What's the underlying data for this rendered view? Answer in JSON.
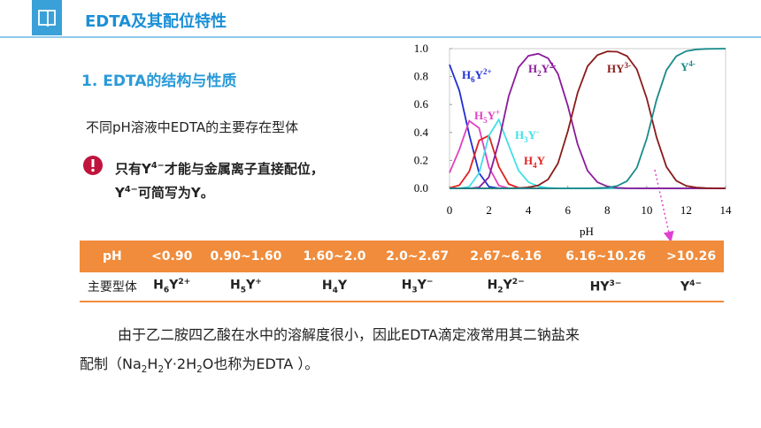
{
  "header": {
    "title": "EDTA及其配位特性"
  },
  "section": {
    "heading": "1. EDTA的结构与性质",
    "intro": "不同pH溶液中EDTA的主要存在型体",
    "note": [
      [
        {
          "text": "只有Y"
        },
        {
          "text": "4−",
          "style": "sup"
        },
        {
          "text": "才能与金属离子直接配位，"
        }
      ],
      [
        {
          "text": "Y"
        },
        {
          "text": "4−",
          "style": "sup"
        },
        {
          "text": "可简写为Y。"
        }
      ]
    ]
  },
  "chart_data": {
    "type": "line",
    "xlabel": "pH",
    "x": [
      0,
      0.5,
      1,
      1.5,
      2,
      2.5,
      3,
      3.5,
      4,
      4.5,
      5,
      5.5,
      6,
      6.5,
      7,
      7.5,
      8,
      8.5,
      9,
      9.5,
      10,
      10.5,
      11,
      11.5,
      12,
      12.5,
      13,
      13.5,
      14
    ],
    "xlim": [
      0,
      14
    ],
    "xticks": [
      0,
      2,
      4,
      6,
      8,
      10,
      12,
      14
    ],
    "ylim": [
      0,
      1
    ],
    "yticks": [
      {
        "value": 0,
        "label": "0.0"
      },
      {
        "value": 0.2,
        "label": "0.2"
      },
      {
        "value": 0.4,
        "label": "0.4"
      },
      {
        "value": 0.6,
        "label": "0.6"
      },
      {
        "value": 0.8,
        "label": "0.8"
      },
      {
        "value": 1,
        "label": "1.0"
      }
    ],
    "series": [
      {
        "name": [
          {
            "text": "H"
          },
          {
            "text": "6",
            "style": "sub"
          },
          {
            "text": "Y"
          },
          {
            "text": "2+",
            "style": "sup"
          }
        ],
        "color": "#1f2fd0",
        "values": [
          0.886,
          0.699,
          0.384,
          0.109,
          0.012,
          0.001,
          0,
          0,
          0,
          0,
          0,
          0,
          0,
          0,
          0,
          0,
          0,
          0,
          0,
          0,
          0,
          0,
          0,
          0,
          0,
          0,
          0,
          0,
          0
        ]
      },
      {
        "name": [
          {
            "text": "H"
          },
          {
            "text": "5",
            "style": "sub"
          },
          {
            "text": "Y"
          },
          {
            "text": "+",
            "style": "sup"
          }
        ],
        "color": "#e040c0",
        "values": [
          0.112,
          0.278,
          0.483,
          0.432,
          0.151,
          0.02,
          0.001,
          0,
          0,
          0,
          0,
          0,
          0,
          0,
          0,
          0,
          0,
          0,
          0,
          0,
          0,
          0,
          0,
          0,
          0,
          0,
          0,
          0,
          0
        ]
      },
      {
        "name": [
          {
            "text": "H"
          },
          {
            "text": "4",
            "style": "sub"
          },
          {
            "text": "Y"
          }
        ],
        "color": "#e02020",
        "values": [
          0.003,
          0.022,
          0.121,
          0.343,
          0.378,
          0.155,
          0.031,
          0.004,
          0,
          0,
          0,
          0,
          0,
          0,
          0,
          0,
          0,
          0,
          0,
          0,
          0,
          0,
          0,
          0,
          0,
          0,
          0,
          0,
          0
        ]
      },
      {
        "name": [
          {
            "text": "H"
          },
          {
            "text": "3",
            "style": "sub"
          },
          {
            "text": "Y"
          },
          {
            "text": "-",
            "style": "sup"
          }
        ],
        "color": "#40e0e8",
        "values": [
          0,
          0.001,
          0.012,
          0.109,
          0.378,
          0.492,
          0.308,
          0.128,
          0.045,
          0.014,
          0.004,
          0.001,
          0,
          0,
          0,
          0,
          0,
          0,
          0,
          0,
          0,
          0,
          0,
          0,
          0,
          0,
          0,
          0,
          0
        ]
      },
      {
        "name": [
          {
            "text": "H"
          },
          {
            "text": "2",
            "style": "sub"
          },
          {
            "text": "Y"
          },
          {
            "text": "2-",
            "style": "sup"
          }
        ],
        "color": "#8a1a9a",
        "values": [
          0,
          0,
          0,
          0.007,
          0.081,
          0.333,
          0.659,
          0.866,
          0.949,
          0.964,
          0.931,
          0.819,
          0.591,
          0.314,
          0.126,
          0.044,
          0.014,
          0.004,
          0.001,
          0,
          0,
          0,
          0,
          0,
          0,
          0,
          0,
          0,
          0
        ]
      },
      {
        "name": [
          {
            "text": "HY"
          },
          {
            "text": "3-",
            "style": "sup"
          }
        ],
        "color": "#8b1a1a",
        "values": [
          0,
          0,
          0,
          0,
          0,
          0,
          0.001,
          0.002,
          0.007,
          0.021,
          0.064,
          0.179,
          0.409,
          0.686,
          0.874,
          0.954,
          0.98,
          0.978,
          0.947,
          0.852,
          0.645,
          0.365,
          0.154,
          0.054,
          0.018,
          0.006,
          0.002,
          0.001,
          0
        ]
      },
      {
        "name": [
          {
            "text": "Y"
          },
          {
            "text": "4-",
            "style": "sup"
          }
        ],
        "color": "#1a8a8a",
        "values": [
          0,
          0,
          0,
          0,
          0,
          0,
          0,
          0,
          0,
          0,
          0,
          0,
          0,
          0,
          0,
          0.002,
          0.005,
          0.017,
          0.052,
          0.148,
          0.355,
          0.635,
          0.846,
          0.946,
          0.982,
          0.994,
          0.998,
          0.999,
          1
        ]
      }
    ]
  },
  "table": {
    "header": [
      "pH",
      "<0.90",
      "0.90~1.60",
      "1.60~2.0",
      "2.0~2.67",
      "2.67~6.16",
      "6.16~10.26",
      ">10.26"
    ],
    "rows": [
      [
        "主要型体",
        [
          {
            "text": "H"
          },
          {
            "text": "6",
            "style": "sub"
          },
          {
            "text": "Y"
          },
          {
            "text": "2+",
            "style": "sup"
          }
        ],
        [
          {
            "text": "H"
          },
          {
            "text": "5",
            "style": "sub"
          },
          {
            "text": "Y"
          },
          {
            "text": "+",
            "style": "sup"
          }
        ],
        [
          {
            "text": "H"
          },
          {
            "text": "4",
            "style": "sub"
          },
          {
            "text": "Y"
          }
        ],
        [
          {
            "text": "H"
          },
          {
            "text": "3",
            "style": "sub"
          },
          {
            "text": "Y"
          },
          {
            "text": "−",
            "style": "sup"
          }
        ],
        [
          {
            "text": "H"
          },
          {
            "text": "2",
            "style": "sub"
          },
          {
            "text": "Y"
          },
          {
            "text": "2−",
            "style": "sup"
          }
        ],
        [
          {
            "text": "HY"
          },
          {
            "text": "3−",
            "style": "sup"
          }
        ],
        [
          {
            "text": "Y"
          },
          {
            "text": "4−",
            "style": "sup"
          }
        ]
      ]
    ]
  },
  "paragraph": [
    "由于乙二胺四乙酸在水中的溶解度很小，因此EDTA滴定液常用其二钠盐来",
    [
      {
        "text": "配制（Na"
      },
      {
        "text": "2",
        "style": "sub"
      },
      {
        "text": "H"
      },
      {
        "text": "2",
        "style": "sub"
      },
      {
        "text": "Y·2H"
      },
      {
        "text": "2",
        "style": "sub"
      },
      {
        "text": "O也称为EDTA ）。"
      }
    ]
  ]
}
